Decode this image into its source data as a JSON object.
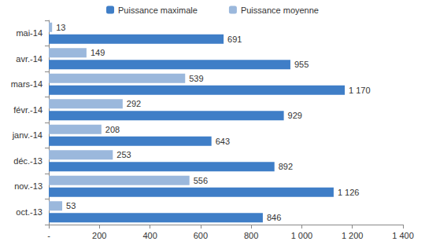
{
  "chart_data": {
    "type": "bar",
    "orientation": "horizontal",
    "categories": [
      "oct.-13",
      "nov.-13",
      "déc.-13",
      "janv.-14",
      "févr.-14",
      "mars-14",
      "avr.-14",
      "mai-14"
    ],
    "series": [
      {
        "name": "Puissance maximale",
        "color": "#3f7ec7",
        "values": [
          846,
          1126,
          892,
          643,
          929,
          1170,
          955,
          691
        ],
        "value_labels": [
          "846",
          "1 126",
          "892",
          "643",
          "929",
          "1 170",
          "955",
          "691"
        ]
      },
      {
        "name": "Puissance moyenne",
        "color": "#9bb8dc",
        "values": [
          53,
          556,
          253,
          208,
          292,
          539,
          149,
          13
        ]
      }
    ],
    "xlim": [
      0,
      1400
    ],
    "xticks": [
      {
        "value": 0,
        "label": "-"
      },
      200,
      400,
      600,
      800,
      {
        "value": 1000,
        "label": "1 000"
      },
      {
        "value": 1200,
        "label": "1 200"
      },
      {
        "value": 1400,
        "label": "1 400"
      }
    ],
    "grid": false,
    "legend": "top",
    "data_labels": true
  }
}
